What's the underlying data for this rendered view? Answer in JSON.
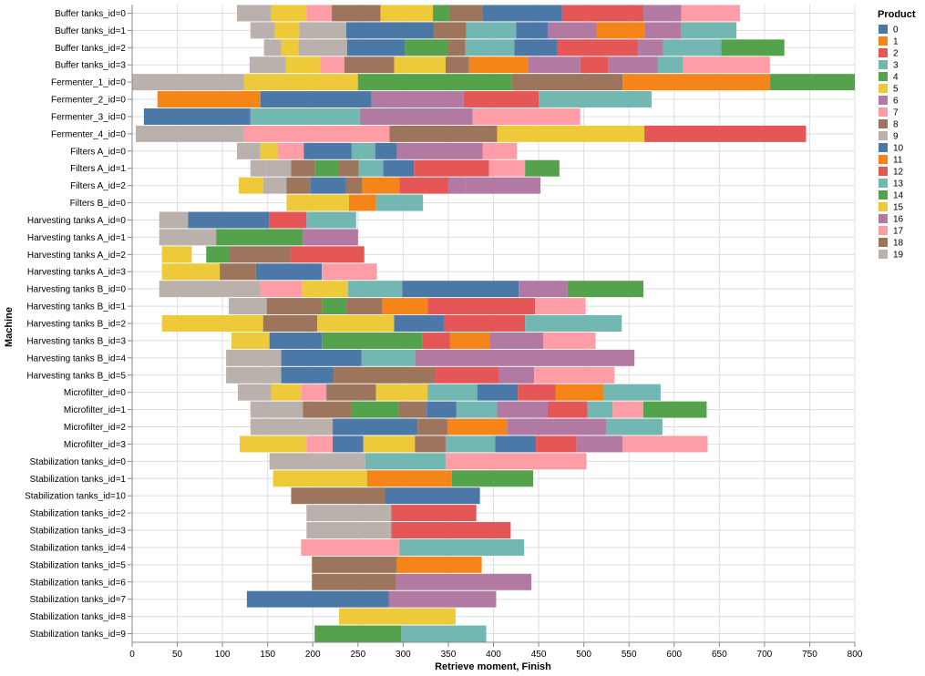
{
  "chart_data": {
    "type": "bar",
    "orientation": "horizontal-gantt",
    "xlabel": "Retrieve moment, Finish",
    "ylabel": "Machine",
    "xlim": [
      0,
      800
    ],
    "x_ticks": [
      0,
      50,
      100,
      150,
      200,
      250,
      300,
      350,
      400,
      450,
      500,
      550,
      600,
      650,
      700,
      750,
      800
    ],
    "grid": true,
    "legend": {
      "title": "Product",
      "placement": "right",
      "entries": [
        "0",
        "1",
        "2",
        "3",
        "4",
        "5",
        "6",
        "7",
        "8",
        "9",
        "10",
        "11",
        "12",
        "13",
        "14",
        "15",
        "16",
        "17",
        "18",
        "19"
      ]
    },
    "palette": [
      "#4c78a8",
      "#f58518",
      "#e45756",
      "#72b7b2",
      "#54a24b",
      "#eeca3b",
      "#b279a2",
      "#ff9da6",
      "#9d755d",
      "#bab0ac",
      "#4c78a8",
      "#f58518",
      "#e45756",
      "#72b7b2",
      "#54a24b",
      "#eeca3b",
      "#b279a2",
      "#ff9da6",
      "#9d755d",
      "#bab0ac"
    ],
    "machines": [
      "Buffer tanks_id=0",
      "Buffer tanks_id=1",
      "Buffer tanks_id=2",
      "Buffer tanks_id=3",
      "Fermenter_1_id=0",
      "Fermenter_2_id=0",
      "Fermenter_3_id=0",
      "Fermenter_4_id=0",
      "Filters A_id=0",
      "Filters A_id=1",
      "Filters A_id=2",
      "Filters B_id=0",
      "Harvesting tanks A_id=0",
      "Harvesting tanks A_id=1",
      "Harvesting tanks A_id=2",
      "Harvesting tanks A_id=3",
      "Harvesting tanks B_id=0",
      "Harvesting tanks B_id=1",
      "Harvesting tanks B_id=2",
      "Harvesting tanks B_id=3",
      "Harvesting tanks B_id=4",
      "Harvesting tanks B_id=5",
      "Microfilter_id=0",
      "Microfilter_id=1",
      "Microfilter_id=2",
      "Microfilter_id=3",
      "Stabilization tanks_id=0",
      "Stabilization tanks_id=1",
      "Stabilization tanks_id=10",
      "Stabilization tanks_id=2",
      "Stabilization tanks_id=3",
      "Stabilization tanks_id=4",
      "Stabilization tanks_id=5",
      "Stabilization tanks_id=6",
      "Stabilization tanks_id=7",
      "Stabilization tanks_id=8",
      "Stabilization tanks_id=9"
    ],
    "tasks": [
      {
        "m": 0,
        "s": 116,
        "e": 154,
        "c": 9
      },
      {
        "m": 0,
        "s": 154,
        "e": 193,
        "c": 5
      },
      {
        "m": 0,
        "s": 193,
        "e": 221,
        "c": 7
      },
      {
        "m": 0,
        "s": 221,
        "e": 275,
        "c": 8
      },
      {
        "m": 0,
        "s": 275,
        "e": 333,
        "c": 5
      },
      {
        "m": 0,
        "s": 333,
        "e": 351,
        "c": 4
      },
      {
        "m": 0,
        "s": 351,
        "e": 388,
        "c": 8
      },
      {
        "m": 0,
        "s": 388,
        "e": 476,
        "c": 0
      },
      {
        "m": 0,
        "s": 476,
        "e": 566,
        "c": 2
      },
      {
        "m": 0,
        "s": 566,
        "e": 608,
        "c": 6
      },
      {
        "m": 0,
        "s": 608,
        "e": 673,
        "c": 7
      },
      {
        "m": 1,
        "s": 131,
        "e": 158,
        "c": 9
      },
      {
        "m": 1,
        "s": 158,
        "e": 185,
        "c": 5
      },
      {
        "m": 1,
        "s": 185,
        "e": 237,
        "c": 9
      },
      {
        "m": 1,
        "s": 237,
        "e": 334,
        "c": 0
      },
      {
        "m": 1,
        "s": 334,
        "e": 370,
        "c": 8
      },
      {
        "m": 1,
        "s": 370,
        "e": 425,
        "c": 3
      },
      {
        "m": 1,
        "s": 425,
        "e": 460,
        "c": 0
      },
      {
        "m": 1,
        "s": 460,
        "e": 514,
        "c": 6
      },
      {
        "m": 1,
        "s": 514,
        "e": 568,
        "c": 1
      },
      {
        "m": 1,
        "s": 568,
        "e": 608,
        "c": 6
      },
      {
        "m": 1,
        "s": 608,
        "e": 669,
        "c": 3
      },
      {
        "m": 2,
        "s": 146,
        "e": 165,
        "c": 9
      },
      {
        "m": 2,
        "s": 165,
        "e": 184,
        "c": 5
      },
      {
        "m": 2,
        "s": 184,
        "e": 238,
        "c": 9
      },
      {
        "m": 2,
        "s": 238,
        "e": 302,
        "c": 0
      },
      {
        "m": 2,
        "s": 302,
        "e": 350,
        "c": 4
      },
      {
        "m": 2,
        "s": 350,
        "e": 369,
        "c": 8
      },
      {
        "m": 2,
        "s": 369,
        "e": 423,
        "c": 3
      },
      {
        "m": 2,
        "s": 423,
        "e": 471,
        "c": 0
      },
      {
        "m": 2,
        "s": 471,
        "e": 560,
        "c": 2
      },
      {
        "m": 2,
        "s": 560,
        "e": 588,
        "c": 6
      },
      {
        "m": 2,
        "s": 588,
        "e": 652,
        "c": 3
      },
      {
        "m": 2,
        "s": 652,
        "e": 722,
        "c": 4
      },
      {
        "m": 3,
        "s": 130,
        "e": 170,
        "c": 9
      },
      {
        "m": 3,
        "s": 170,
        "e": 208,
        "c": 5
      },
      {
        "m": 3,
        "s": 208,
        "e": 235,
        "c": 7
      },
      {
        "m": 3,
        "s": 235,
        "e": 290,
        "c": 8
      },
      {
        "m": 3,
        "s": 290,
        "e": 347,
        "c": 5
      },
      {
        "m": 3,
        "s": 347,
        "e": 373,
        "c": 8
      },
      {
        "m": 3,
        "s": 373,
        "e": 438,
        "c": 1
      },
      {
        "m": 3,
        "s": 438,
        "e": 496,
        "c": 6
      },
      {
        "m": 3,
        "s": 496,
        "e": 527,
        "c": 2
      },
      {
        "m": 3,
        "s": 527,
        "e": 582,
        "c": 6
      },
      {
        "m": 3,
        "s": 582,
        "e": 610,
        "c": 3
      },
      {
        "m": 3,
        "s": 610,
        "e": 706,
        "c": 7
      },
      {
        "m": 4,
        "s": 0,
        "e": 124,
        "c": 9
      },
      {
        "m": 4,
        "s": 124,
        "e": 250,
        "c": 5
      },
      {
        "m": 4,
        "s": 250,
        "e": 420,
        "c": 4
      },
      {
        "m": 4,
        "s": 420,
        "e": 543,
        "c": 8
      },
      {
        "m": 4,
        "s": 543,
        "e": 706,
        "c": 1
      },
      {
        "m": 4,
        "s": 706,
        "e": 800,
        "c": 4
      },
      {
        "m": 5,
        "s": 28,
        "e": 142,
        "c": 1
      },
      {
        "m": 5,
        "s": 142,
        "e": 265,
        "c": 0
      },
      {
        "m": 5,
        "s": 265,
        "e": 367,
        "c": 6
      },
      {
        "m": 5,
        "s": 367,
        "e": 450,
        "c": 2
      },
      {
        "m": 5,
        "s": 450,
        "e": 575,
        "c": 3
      },
      {
        "m": 6,
        "s": 13,
        "e": 131,
        "c": 0
      },
      {
        "m": 6,
        "s": 131,
        "e": 252,
        "c": 3
      },
      {
        "m": 6,
        "s": 252,
        "e": 377,
        "c": 6
      },
      {
        "m": 6,
        "s": 377,
        "e": 496,
        "c": 7
      },
      {
        "m": 7,
        "s": 4,
        "e": 124,
        "c": 9
      },
      {
        "m": 7,
        "s": 124,
        "e": 285,
        "c": 7
      },
      {
        "m": 7,
        "s": 285,
        "e": 404,
        "c": 8
      },
      {
        "m": 7,
        "s": 404,
        "e": 567,
        "c": 5
      },
      {
        "m": 7,
        "s": 567,
        "e": 746,
        "c": 2
      },
      {
        "m": 8,
        "s": 116,
        "e": 142,
        "c": 9
      },
      {
        "m": 8,
        "s": 142,
        "e": 161,
        "c": 5
      },
      {
        "m": 8,
        "s": 161,
        "e": 190,
        "c": 7
      },
      {
        "m": 8,
        "s": 190,
        "e": 243,
        "c": 0
      },
      {
        "m": 8,
        "s": 243,
        "e": 269,
        "c": 3
      },
      {
        "m": 8,
        "s": 269,
        "e": 293,
        "c": 0
      },
      {
        "m": 8,
        "s": 293,
        "e": 388,
        "c": 6
      },
      {
        "m": 8,
        "s": 388,
        "e": 426,
        "c": 7
      },
      {
        "m": 9,
        "s": 131,
        "e": 149,
        "c": 9
      },
      {
        "m": 9,
        "s": 149,
        "e": 176,
        "c": 9
      },
      {
        "m": 9,
        "s": 176,
        "e": 202,
        "c": 8
      },
      {
        "m": 9,
        "s": 202,
        "e": 229,
        "c": 4
      },
      {
        "m": 9,
        "s": 229,
        "e": 251,
        "c": 8
      },
      {
        "m": 9,
        "s": 251,
        "e": 278,
        "c": 3
      },
      {
        "m": 9,
        "s": 278,
        "e": 312,
        "c": 0
      },
      {
        "m": 9,
        "s": 312,
        "e": 395,
        "c": 2
      },
      {
        "m": 9,
        "s": 395,
        "e": 435,
        "c": 7
      },
      {
        "m": 9,
        "s": 435,
        "e": 473,
        "c": 4
      },
      {
        "m": 10,
        "s": 118,
        "e": 145,
        "c": 5
      },
      {
        "m": 10,
        "s": 145,
        "e": 171,
        "c": 9
      },
      {
        "m": 10,
        "s": 171,
        "e": 197,
        "c": 8
      },
      {
        "m": 10,
        "s": 197,
        "e": 237,
        "c": 0
      },
      {
        "m": 10,
        "s": 237,
        "e": 255,
        "c": 8
      },
      {
        "m": 10,
        "s": 255,
        "e": 296,
        "c": 1
      },
      {
        "m": 10,
        "s": 296,
        "e": 350,
        "c": 2
      },
      {
        "m": 10,
        "s": 350,
        "e": 369,
        "c": 6
      },
      {
        "m": 10,
        "s": 369,
        "e": 452,
        "c": 6
      },
      {
        "m": 11,
        "s": 171,
        "e": 240,
        "c": 5
      },
      {
        "m": 11,
        "s": 240,
        "e": 270,
        "c": 1
      },
      {
        "m": 11,
        "s": 270,
        "e": 322,
        "c": 3
      },
      {
        "m": 12,
        "s": 30,
        "e": 62,
        "c": 9
      },
      {
        "m": 12,
        "s": 62,
        "e": 152,
        "c": 0
      },
      {
        "m": 12,
        "s": 152,
        "e": 193,
        "c": 2
      },
      {
        "m": 12,
        "s": 193,
        "e": 248,
        "c": 3
      },
      {
        "m": 13,
        "s": 30,
        "e": 93,
        "c": 9
      },
      {
        "m": 13,
        "s": 93,
        "e": 189,
        "c": 4
      },
      {
        "m": 13,
        "s": 189,
        "e": 250,
        "c": 6
      },
      {
        "m": 14,
        "s": 33,
        "e": 66,
        "c": 5
      },
      {
        "m": 14,
        "s": 82,
        "e": 107,
        "c": 4
      },
      {
        "m": 14,
        "s": 107,
        "e": 175,
        "c": 8
      },
      {
        "m": 14,
        "s": 175,
        "e": 257,
        "c": 2
      },
      {
        "m": 15,
        "s": 33,
        "e": 97,
        "c": 5
      },
      {
        "m": 15,
        "s": 97,
        "e": 137,
        "c": 8
      },
      {
        "m": 15,
        "s": 137,
        "e": 210,
        "c": 0
      },
      {
        "m": 15,
        "s": 210,
        "e": 271,
        "c": 7
      },
      {
        "m": 16,
        "s": 30,
        "e": 142,
        "c": 9
      },
      {
        "m": 16,
        "s": 142,
        "e": 188,
        "c": 7
      },
      {
        "m": 16,
        "s": 188,
        "e": 239,
        "c": 5
      },
      {
        "m": 16,
        "s": 239,
        "e": 299,
        "c": 3
      },
      {
        "m": 16,
        "s": 299,
        "e": 428,
        "c": 0
      },
      {
        "m": 16,
        "s": 428,
        "e": 482,
        "c": 6
      },
      {
        "m": 16,
        "s": 482,
        "e": 566,
        "c": 4
      },
      {
        "m": 17,
        "s": 107,
        "e": 149,
        "c": 9
      },
      {
        "m": 17,
        "s": 149,
        "e": 210,
        "c": 8
      },
      {
        "m": 17,
        "s": 210,
        "e": 237,
        "c": 4
      },
      {
        "m": 17,
        "s": 237,
        "e": 277,
        "c": 8
      },
      {
        "m": 17,
        "s": 277,
        "e": 327,
        "c": 1
      },
      {
        "m": 17,
        "s": 327,
        "e": 446,
        "c": 2
      },
      {
        "m": 17,
        "s": 446,
        "e": 502,
        "c": 7
      },
      {
        "m": 18,
        "s": 33,
        "e": 145,
        "c": 5
      },
      {
        "m": 18,
        "s": 145,
        "e": 205,
        "c": 8
      },
      {
        "m": 18,
        "s": 205,
        "e": 290,
        "c": 5
      },
      {
        "m": 18,
        "s": 290,
        "e": 345,
        "c": 0
      },
      {
        "m": 18,
        "s": 345,
        "e": 435,
        "c": 2
      },
      {
        "m": 18,
        "s": 435,
        "e": 542,
        "c": 3
      },
      {
        "m": 19,
        "s": 110,
        "e": 152,
        "c": 5
      },
      {
        "m": 19,
        "s": 152,
        "e": 210,
        "c": 0
      },
      {
        "m": 19,
        "s": 210,
        "e": 321,
        "c": 4
      },
      {
        "m": 19,
        "s": 321,
        "e": 352,
        "c": 2
      },
      {
        "m": 19,
        "s": 352,
        "e": 396,
        "c": 1
      },
      {
        "m": 19,
        "s": 396,
        "e": 455,
        "c": 6
      },
      {
        "m": 19,
        "s": 455,
        "e": 513,
        "c": 7
      },
      {
        "m": 20,
        "s": 104,
        "e": 165,
        "c": 9
      },
      {
        "m": 20,
        "s": 165,
        "e": 254,
        "c": 0
      },
      {
        "m": 20,
        "s": 254,
        "e": 313,
        "c": 3
      },
      {
        "m": 20,
        "s": 313,
        "e": 556,
        "c": 6
      },
      {
        "m": 21,
        "s": 104,
        "e": 165,
        "c": 9
      },
      {
        "m": 21,
        "s": 165,
        "e": 223,
        "c": 0
      },
      {
        "m": 21,
        "s": 223,
        "e": 336,
        "c": 8
      },
      {
        "m": 21,
        "s": 336,
        "e": 406,
        "c": 2
      },
      {
        "m": 21,
        "s": 406,
        "e": 445,
        "c": 6
      },
      {
        "m": 21,
        "s": 445,
        "e": 534,
        "c": 7
      },
      {
        "m": 22,
        "s": 117,
        "e": 154,
        "c": 9
      },
      {
        "m": 22,
        "s": 154,
        "e": 187,
        "c": 5
      },
      {
        "m": 22,
        "s": 187,
        "e": 215,
        "c": 7
      },
      {
        "m": 22,
        "s": 215,
        "e": 270,
        "c": 8
      },
      {
        "m": 22,
        "s": 270,
        "e": 327,
        "c": 5
      },
      {
        "m": 22,
        "s": 327,
        "e": 382,
        "c": 3
      },
      {
        "m": 22,
        "s": 382,
        "e": 427,
        "c": 0
      },
      {
        "m": 22,
        "s": 427,
        "e": 469,
        "c": 2
      },
      {
        "m": 22,
        "s": 469,
        "e": 522,
        "c": 1
      },
      {
        "m": 22,
        "s": 522,
        "e": 585,
        "c": 3
      },
      {
        "m": 23,
        "s": 131,
        "e": 189,
        "c": 9
      },
      {
        "m": 23,
        "s": 189,
        "e": 243,
        "c": 8
      },
      {
        "m": 23,
        "s": 243,
        "e": 295,
        "c": 4
      },
      {
        "m": 23,
        "s": 295,
        "e": 326,
        "c": 8
      },
      {
        "m": 23,
        "s": 326,
        "e": 359,
        "c": 0
      },
      {
        "m": 23,
        "s": 359,
        "e": 404,
        "c": 3
      },
      {
        "m": 23,
        "s": 404,
        "e": 460,
        "c": 6
      },
      {
        "m": 23,
        "s": 460,
        "e": 504,
        "c": 2
      },
      {
        "m": 23,
        "s": 504,
        "e": 532,
        "c": 3
      },
      {
        "m": 23,
        "s": 532,
        "e": 566,
        "c": 7
      },
      {
        "m": 23,
        "s": 566,
        "e": 636,
        "c": 4
      },
      {
        "m": 24,
        "s": 131,
        "e": 222,
        "c": 9
      },
      {
        "m": 24,
        "s": 222,
        "e": 316,
        "c": 0
      },
      {
        "m": 24,
        "s": 316,
        "e": 349,
        "c": 8
      },
      {
        "m": 24,
        "s": 349,
        "e": 415,
        "c": 1
      },
      {
        "m": 24,
        "s": 415,
        "e": 525,
        "c": 6
      },
      {
        "m": 24,
        "s": 525,
        "e": 587,
        "c": 3
      },
      {
        "m": 25,
        "s": 119,
        "e": 193,
        "c": 5
      },
      {
        "m": 25,
        "s": 193,
        "e": 222,
        "c": 7
      },
      {
        "m": 25,
        "s": 222,
        "e": 256,
        "c": 0
      },
      {
        "m": 25,
        "s": 256,
        "e": 313,
        "c": 5
      },
      {
        "m": 25,
        "s": 313,
        "e": 347,
        "c": 8
      },
      {
        "m": 25,
        "s": 347,
        "e": 402,
        "c": 3
      },
      {
        "m": 25,
        "s": 402,
        "e": 447,
        "c": 0
      },
      {
        "m": 25,
        "s": 447,
        "e": 492,
        "c": 2
      },
      {
        "m": 25,
        "s": 492,
        "e": 543,
        "c": 6
      },
      {
        "m": 25,
        "s": 543,
        "e": 637,
        "c": 7
      },
      {
        "m": 26,
        "s": 152,
        "e": 258,
        "c": 9
      },
      {
        "m": 26,
        "s": 258,
        "e": 347,
        "c": 3
      },
      {
        "m": 26,
        "s": 347,
        "e": 503,
        "c": 7
      },
      {
        "m": 27,
        "s": 156,
        "e": 260,
        "c": 5
      },
      {
        "m": 27,
        "s": 260,
        "e": 354,
        "c": 1
      },
      {
        "m": 27,
        "s": 354,
        "e": 444,
        "c": 4
      },
      {
        "m": 28,
        "s": 176,
        "e": 280,
        "c": 8
      },
      {
        "m": 28,
        "s": 280,
        "e": 385,
        "c": 0
      },
      {
        "m": 29,
        "s": 193,
        "e": 287,
        "c": 9
      },
      {
        "m": 29,
        "s": 287,
        "e": 381,
        "c": 2
      },
      {
        "m": 30,
        "s": 193,
        "e": 287,
        "c": 9
      },
      {
        "m": 30,
        "s": 287,
        "e": 419,
        "c": 2
      },
      {
        "m": 31,
        "s": 187,
        "e": 296,
        "c": 7
      },
      {
        "m": 31,
        "s": 296,
        "e": 434,
        "c": 3
      },
      {
        "m": 32,
        "s": 199,
        "e": 293,
        "c": 8
      },
      {
        "m": 32,
        "s": 293,
        "e": 387,
        "c": 1
      },
      {
        "m": 33,
        "s": 199,
        "e": 292,
        "c": 8
      },
      {
        "m": 33,
        "s": 292,
        "e": 442,
        "c": 6
      },
      {
        "m": 34,
        "s": 127,
        "e": 284,
        "c": 0
      },
      {
        "m": 34,
        "s": 284,
        "e": 403,
        "c": 6
      },
      {
        "m": 35,
        "s": 229,
        "e": 358,
        "c": 5
      },
      {
        "m": 36,
        "s": 202,
        "e": 298,
        "c": 4
      },
      {
        "m": 36,
        "s": 298,
        "e": 392,
        "c": 3
      }
    ]
  }
}
